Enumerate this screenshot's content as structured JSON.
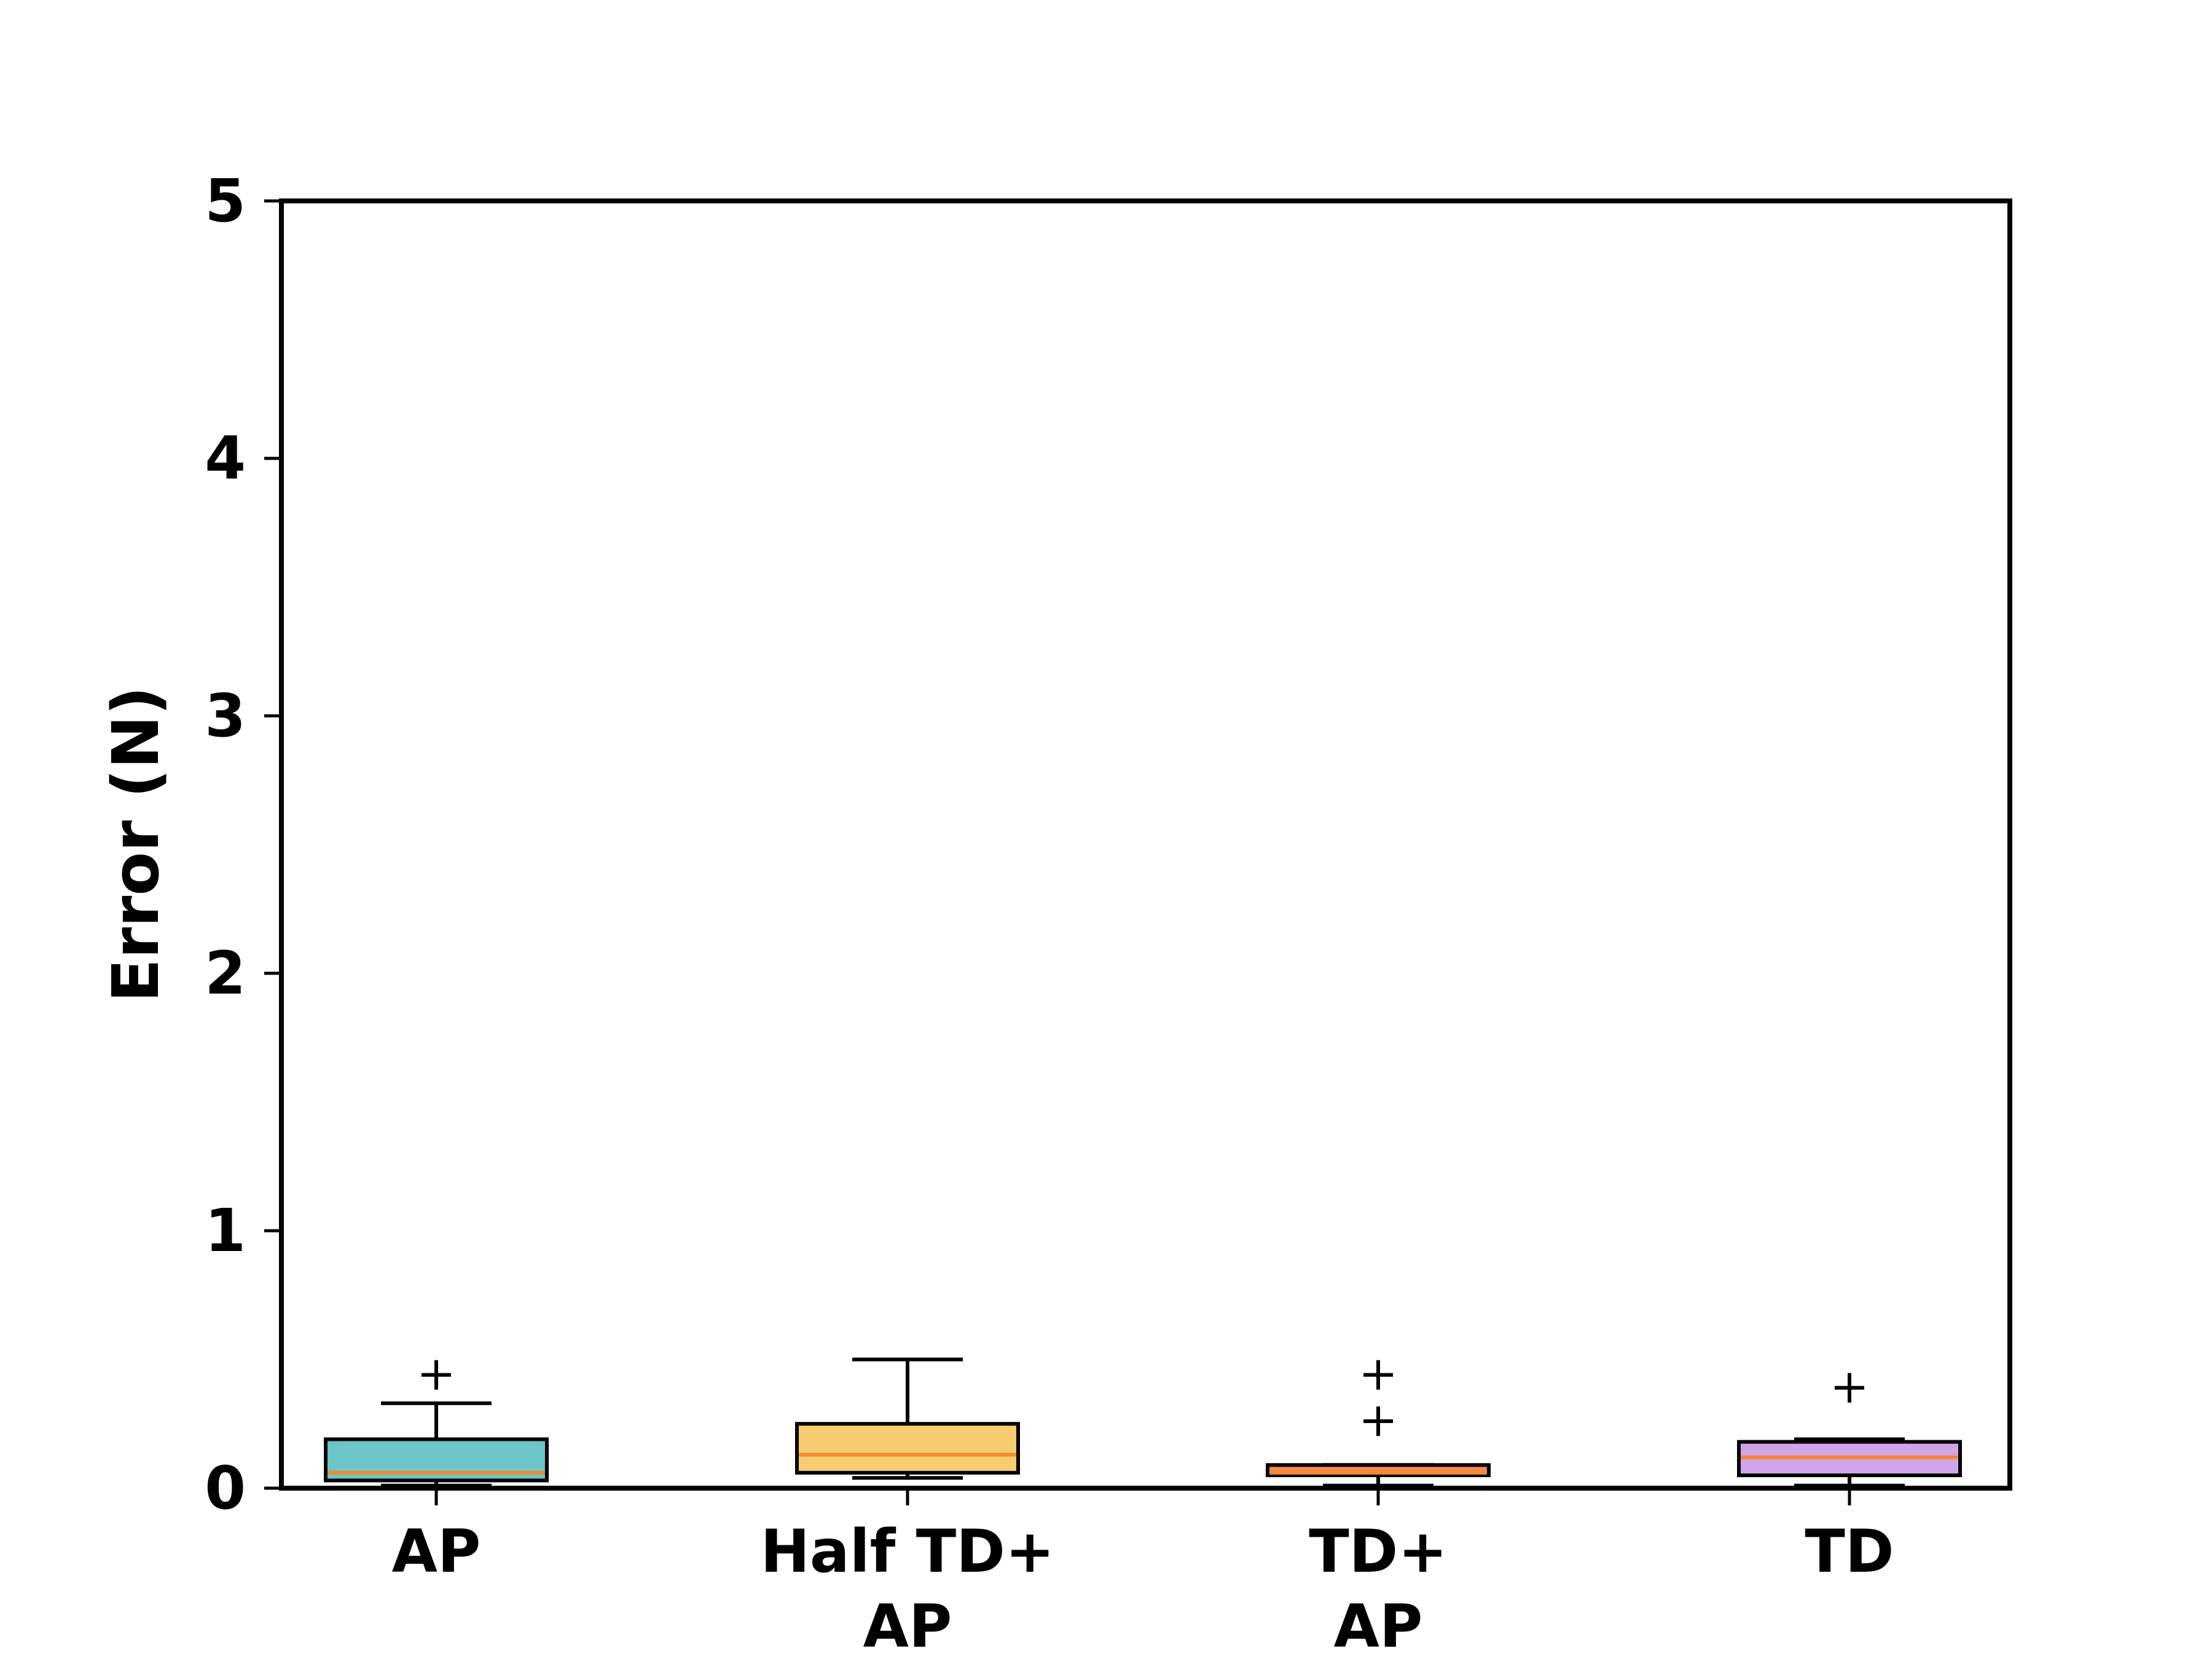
{
  "chart_data": {
    "type": "box",
    "ylabel": "Error (N)",
    "xlabel": "",
    "ylim": [
      0,
      5
    ],
    "yticks": [
      "0",
      "1",
      "2",
      "3",
      "4",
      "5"
    ],
    "grid": false,
    "categories": [
      {
        "lines": [
          "AP"
        ]
      },
      {
        "lines": [
          "Half TD+",
          "AP"
        ]
      },
      {
        "lines": [
          "TD+",
          "AP"
        ]
      },
      {
        "lines": [
          "TD"
        ]
      }
    ],
    "boxes": [
      {
        "whisker_low": 0.01,
        "q1": 0.03,
        "median": 0.06,
        "q3": 0.19,
        "whisker_high": 0.33,
        "outliers": [
          0.44
        ],
        "color": "#6cc5c9"
      },
      {
        "whisker_low": 0.04,
        "q1": 0.06,
        "median": 0.13,
        "q3": 0.25,
        "whisker_high": 0.5,
        "outliers": [],
        "color": "#f7cb6f"
      },
      {
        "whisker_low": 0.01,
        "q1": 0.05,
        "median": 0.06,
        "q3": 0.09,
        "whisker_high": 0.09,
        "outliers": [
          0.26,
          0.44
        ],
        "color": "#f2884f"
      },
      {
        "whisker_low": 0.01,
        "q1": 0.05,
        "median": 0.12,
        "q3": 0.18,
        "whisker_high": 0.19,
        "outliers": [
          0.39
        ],
        "color": "#cfa4ea"
      }
    ],
    "median_color": "#f28a2e"
  }
}
